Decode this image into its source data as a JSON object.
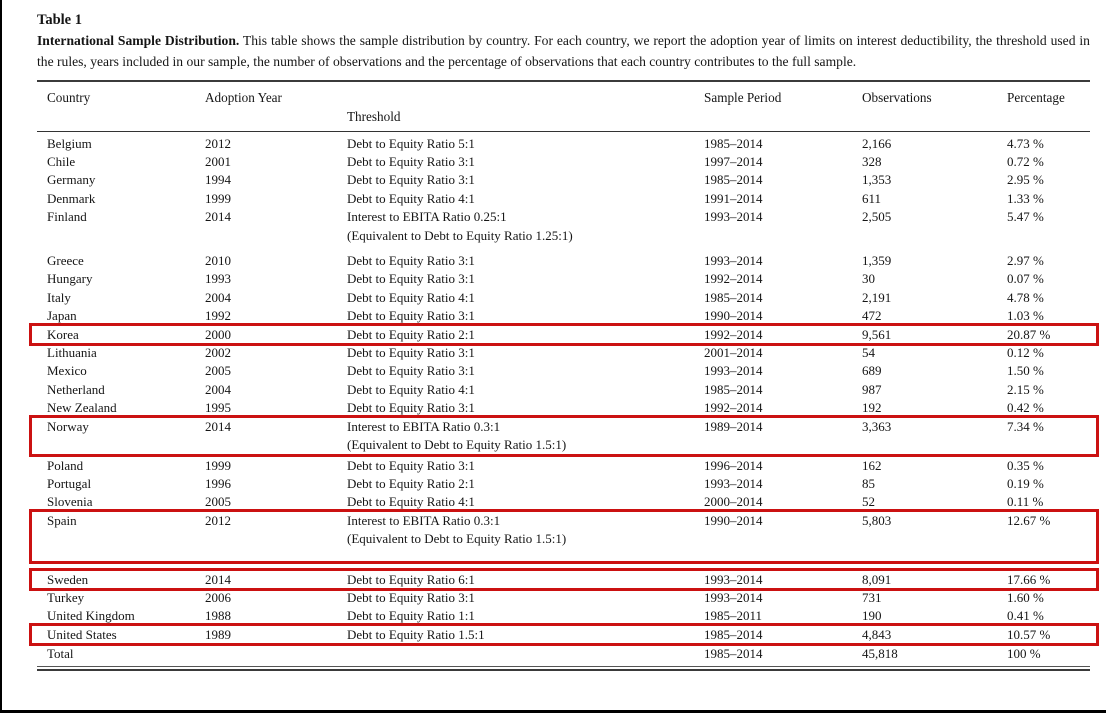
{
  "page": {
    "title": "Table 1",
    "caption_bold": "International Sample Distribution.",
    "caption_text": " This table shows the sample distribution by country. For each country, we report the adoption year of limits on interest deductibility, the threshold used in the rules, years included in our sample, the number of observations and the percentage of observations that each country contributes to the full sample."
  },
  "table": {
    "highlight_color": "#cb1111",
    "headers": {
      "country": "Country",
      "adoption_year": "Adoption Year",
      "threshold": "Threshold",
      "sample_period": "Sample Period",
      "observations": "Observations",
      "percentage": "Percentage"
    },
    "rows": [
      {
        "country": "Belgium",
        "year": "2012",
        "threshold": "Debt to Equity Ratio 5:1",
        "threshold2": "",
        "period": "1985–2014",
        "obs": "2,166",
        "pct": "4.73 %",
        "highlight": false,
        "pad_bottom": false,
        "spacer_after": 0
      },
      {
        "country": "Chile",
        "year": "2001",
        "threshold": "Debt to Equity Ratio 3:1",
        "threshold2": "",
        "period": "1997–2014",
        "obs": "328",
        "pct": "0.72 %",
        "highlight": false,
        "pad_bottom": false,
        "spacer_after": 0
      },
      {
        "country": "Germany",
        "year": "1994",
        "threshold": "Debt to Equity Ratio 3:1",
        "threshold2": "",
        "period": "1985–2014",
        "obs": "1,353",
        "pct": "2.95 %",
        "highlight": false,
        "pad_bottom": false,
        "spacer_after": 0
      },
      {
        "country": "Denmark",
        "year": "1999",
        "threshold": "Debt to Equity Ratio 4:1",
        "threshold2": "",
        "period": "1991–2014",
        "obs": "611",
        "pct": "1.33 %",
        "highlight": false,
        "pad_bottom": false,
        "spacer_after": 0
      },
      {
        "country": "Finland",
        "year": "2014",
        "threshold": "Interest to EBITA Ratio 0.25:1",
        "threshold2": "(Equivalent to Debt to Equity Ratio 1.25:1)",
        "period": "1993–2014",
        "obs": "2,505",
        "pct": "5.47 %",
        "highlight": false,
        "pad_bottom": false,
        "spacer_after": 7
      },
      {
        "country": "Greece",
        "year": "2010",
        "threshold": "Debt to Equity Ratio 3:1",
        "threshold2": "",
        "period": "1993–2014",
        "obs": "1,359",
        "pct": "2.97 %",
        "highlight": false,
        "pad_bottom": false,
        "spacer_after": 0
      },
      {
        "country": "Hungary",
        "year": "1993",
        "threshold": "Debt to Equity Ratio 3:1",
        "threshold2": "",
        "period": "1992–2014",
        "obs": "30",
        "pct": "0.07 %",
        "highlight": false,
        "pad_bottom": false,
        "spacer_after": 0
      },
      {
        "country": "Italy",
        "year": "2004",
        "threshold": "Debt to Equity Ratio 4:1",
        "threshold2": "",
        "period": "1985–2014",
        "obs": "2,191",
        "pct": "4.78 %",
        "highlight": false,
        "pad_bottom": false,
        "spacer_after": 0
      },
      {
        "country": "Japan",
        "year": "1992",
        "threshold": "Debt to Equity Ratio 3:1",
        "threshold2": "",
        "period": "1990–2014",
        "obs": "472",
        "pct": "1.03 %",
        "highlight": false,
        "pad_bottom": false,
        "spacer_after": 0
      },
      {
        "country": "Korea",
        "year": "2000",
        "threshold": "Debt to Equity Ratio 2:1",
        "threshold2": "",
        "period": "1992–2014",
        "obs": "9,561",
        "pct": "20.87 %",
        "highlight": true,
        "pad_bottom": false,
        "spacer_after": 0
      },
      {
        "country": "Lithuania",
        "year": "2002",
        "threshold": "Debt to Equity Ratio 3:1",
        "threshold2": "",
        "period": "2001–2014",
        "obs": "54",
        "pct": "0.12 %",
        "highlight": false,
        "pad_bottom": false,
        "spacer_after": 0
      },
      {
        "country": "Mexico",
        "year": "2005",
        "threshold": "Debt to Equity Ratio 3:1",
        "threshold2": "",
        "period": "1993–2014",
        "obs": "689",
        "pct": "1.50 %",
        "highlight": false,
        "pad_bottom": false,
        "spacer_after": 0
      },
      {
        "country": "Netherland",
        "year": "2004",
        "threshold": "Debt to Equity Ratio 4:1",
        "threshold2": "",
        "period": "1985–2014",
        "obs": "987",
        "pct": "2.15 %",
        "highlight": false,
        "pad_bottom": false,
        "spacer_after": 0
      },
      {
        "country": "New Zealand",
        "year": "1995",
        "threshold": "Debt to Equity Ratio 3:1",
        "threshold2": "",
        "period": "1992–2014",
        "obs": "192",
        "pct": "0.42 %",
        "highlight": false,
        "pad_bottom": false,
        "spacer_after": 0
      },
      {
        "country": "Norway",
        "year": "2014",
        "threshold": "Interest to EBITA Ratio 0.3:1",
        "threshold2": "(Equivalent to Debt to Equity Ratio 1.5:1)",
        "period": "1989–2014",
        "obs": "3,363",
        "pct": "7.34 %",
        "highlight": true,
        "pad_bottom": false,
        "spacer_after": 2
      },
      {
        "country": "Poland",
        "year": "1999",
        "threshold": "Debt to Equity Ratio 3:1",
        "threshold2": "",
        "period": "1996–2014",
        "obs": "162",
        "pct": "0.35 %",
        "highlight": false,
        "pad_bottom": false,
        "spacer_after": 0
      },
      {
        "country": "Portugal",
        "year": "1996",
        "threshold": "Debt to Equity Ratio 2:1",
        "threshold2": "",
        "period": "1993–2014",
        "obs": "85",
        "pct": "0.19 %",
        "highlight": false,
        "pad_bottom": false,
        "spacer_after": 0
      },
      {
        "country": "Slovenia",
        "year": "2005",
        "threshold": "Debt to Equity Ratio 4:1",
        "threshold2": "",
        "period": "2000–2014",
        "obs": "52",
        "pct": "0.11 %",
        "highlight": false,
        "pad_bottom": false,
        "spacer_after": 0
      },
      {
        "country": "Spain",
        "year": "2012",
        "threshold": "Interest to EBITA Ratio 0.3:1",
        "threshold2": "(Equivalent to Debt to Equity Ratio 1.5:1)",
        "period": "1990–2014",
        "obs": "5,803",
        "pct": "12.67 %",
        "highlight": true,
        "pad_bottom": true,
        "spacer_after": 9
      },
      {
        "country": "Sweden",
        "year": "2014",
        "threshold": "Debt to Equity Ratio 6:1",
        "threshold2": "",
        "period": "1993–2014",
        "obs": "8,091",
        "pct": "17.66 %",
        "highlight": true,
        "pad_bottom": false,
        "spacer_after": 0
      },
      {
        "country": "Turkey",
        "year": "2006",
        "threshold": "Debt to Equity Ratio 3:1",
        "threshold2": "",
        "period": "1993–2014",
        "obs": "731",
        "pct": "1.60 %",
        "highlight": false,
        "pad_bottom": false,
        "spacer_after": 0
      },
      {
        "country": "United Kingdom",
        "year": "1988",
        "threshold": "Debt to Equity Ratio 1:1",
        "threshold2": "",
        "period": "1985–2011",
        "obs": "190",
        "pct": "0.41 %",
        "highlight": false,
        "pad_bottom": false,
        "spacer_after": 0
      },
      {
        "country": "United States",
        "year": "1989",
        "threshold": "Debt to Equity Ratio 1.5:1",
        "threshold2": "",
        "period": "1985–2014",
        "obs": "4,843",
        "pct": "10.57 %",
        "highlight": true,
        "pad_bottom": false,
        "spacer_after": 0
      }
    ],
    "total": {
      "country": "Total",
      "year": "",
      "threshold": "",
      "period": "1985–2014",
      "obs": "45,818",
      "pct": "100 %"
    }
  }
}
